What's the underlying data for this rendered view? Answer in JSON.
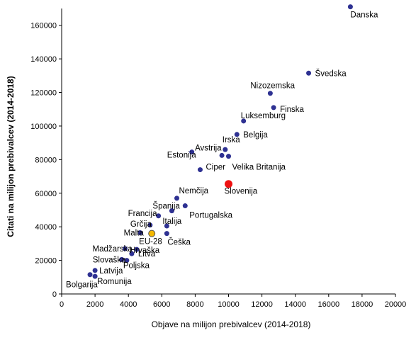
{
  "chart_data": {
    "type": "scatter",
    "title": "",
    "xlabel": "Objave na milijon prebivalcev (2014-2018)",
    "ylabel": "Citati na milijon prebivalcev (2014-2018)",
    "xlim": [
      0,
      20000
    ],
    "ylim": [
      0,
      170000
    ],
    "x_ticks": [
      "0",
      "2000",
      "4000",
      "6000",
      "8000",
      "10000",
      "12000",
      "14000",
      "16000",
      "18000",
      "20000"
    ],
    "y_ticks": [
      "0",
      "20000",
      "40000",
      "60000",
      "80000",
      "100000",
      "120000",
      "140000",
      "160000"
    ],
    "grid": false,
    "colors": {
      "default": "#2e3192",
      "highlight": "#ee1111",
      "average": "#f5b800",
      "axis": "#000000"
    },
    "points": [
      {
        "label": "Danska",
        "x": 17300,
        "y": 171000
      },
      {
        "label": "Švedska",
        "x": 14800,
        "y": 131500
      },
      {
        "label": "Nizozemska",
        "x": 12500,
        "y": 119500
      },
      {
        "label": "Finska",
        "x": 12700,
        "y": 111000
      },
      {
        "label": "Luksemburg",
        "x": 10900,
        "y": 103000
      },
      {
        "label": "Belgija",
        "x": 10500,
        "y": 95000
      },
      {
        "label": "Irska",
        "x": 9800,
        "y": 86000
      },
      {
        "label": "Avstrija",
        "x": 9600,
        "y": 82500
      },
      {
        "label": "Velika Britanija",
        "x": 10000,
        "y": 82000
      },
      {
        "label": "Estonija",
        "x": 7800,
        "y": 84500
      },
      {
        "label": "Ciper",
        "x": 8300,
        "y": 74000
      },
      {
        "label": "Slovenija",
        "x": 10000,
        "y": 65500,
        "highlight": true
      },
      {
        "label": "Nemčija",
        "x": 6900,
        "y": 57000
      },
      {
        "label": "Španija",
        "x": 6600,
        "y": 49500
      },
      {
        "label": "Portugalska",
        "x": 7400,
        "y": 52500
      },
      {
        "label": "Francija",
        "x": 5800,
        "y": 46500
      },
      {
        "label": "Grčija",
        "x": 5300,
        "y": 41000
      },
      {
        "label": "Italija",
        "x": 6300,
        "y": 40500
      },
      {
        "label": "Malta",
        "x": 4700,
        "y": 36500
      },
      {
        "label": "EU-28",
        "x": 5400,
        "y": 36000,
        "average": true
      },
      {
        "label": "Češka",
        "x": 6300,
        "y": 36000
      },
      {
        "label": "Madžarska",
        "x": 3800,
        "y": 27000
      },
      {
        "label": "Hrvaška",
        "x": 4500,
        "y": 26500
      },
      {
        "label": "Litva",
        "x": 4200,
        "y": 24000
      },
      {
        "label": "Slovaška",
        "x": 3600,
        "y": 20500
      },
      {
        "label": "Poljska",
        "x": 3900,
        "y": 20000
      },
      {
        "label": "Latvija",
        "x": 2000,
        "y": 14000
      },
      {
        "label": "Bolgarija",
        "x": 1700,
        "y": 11500
      },
      {
        "label": "Romunija",
        "x": 2000,
        "y": 10500
      }
    ]
  }
}
